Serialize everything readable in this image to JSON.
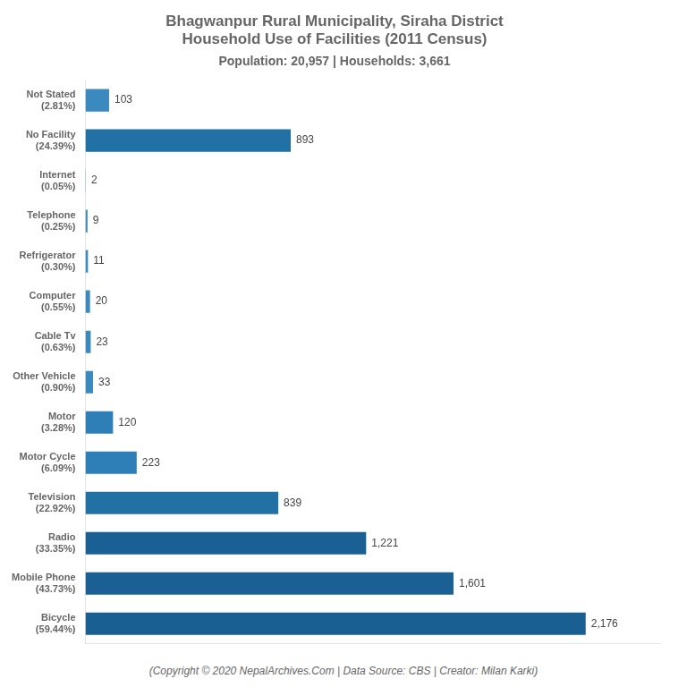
{
  "chart_data": {
    "type": "bar",
    "orientation": "horizontal",
    "title": "Bhagwanpur Rural Municipality, Siraha District\nHousehold Use of Facilities (2011 Census)",
    "subtitle": "Population: 20,957 | Households: 3,661",
    "annotations": [
      "(Copyright © 2020 NepalArchives.Com | Data Source: CBS | Creator: Milan Karki)"
    ],
    "categories": [
      "Not Stated\n(2.81%)",
      "No Facility\n(24.39%)",
      "Internet\n(0.05%)",
      "Telephone\n(0.25%)",
      "Refrigerator\n(0.30%)",
      "Computer\n(0.55%)",
      "Cable Tv\n(0.63%)",
      "Other Vehicle\n(0.90%)",
      "Motor\n(3.28%)",
      "Motor Cycle\n(6.09%)",
      "Television\n(22.92%)",
      "Radio\n(33.35%)",
      "Mobile Phone\n(43.73%)",
      "Bicycle\n(59.44%)"
    ],
    "values": [
      103,
      893,
      2,
      9,
      11,
      20,
      23,
      33,
      120,
      223,
      839,
      1221,
      1601,
      2176
    ],
    "value_labels": [
      "103",
      "893",
      "2",
      "9",
      "11",
      "20",
      "23",
      "33",
      "120",
      "223",
      "839",
      "1,221",
      "1,601",
      "2,176"
    ],
    "data_labels": true,
    "colors": [
      "#3a8abf",
      "#2171a5",
      "#3a8abf",
      "#3a8abf",
      "#3a8abf",
      "#3a8abf",
      "#3a8abf",
      "#3a8abf",
      "#2e7fb8",
      "#2e7fb8",
      "#2171a5",
      "#1a6095",
      "#1a6095",
      "#1a5f92"
    ],
    "xlim": [
      0,
      2500
    ],
    "tick_labels": "y",
    "grid": false
  }
}
